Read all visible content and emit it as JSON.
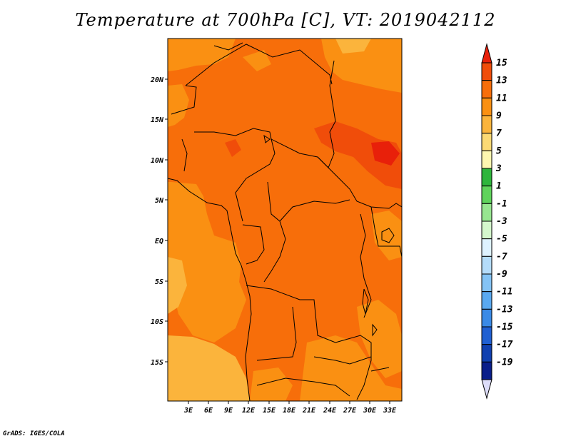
{
  "title": "Temperature at 700hPa [C], VT: 2019042112",
  "footer": "GrADS: IGES/COLA",
  "map": {
    "lat_labels": [
      "20N",
      "15N",
      "10N",
      "5N",
      "EQ",
      "5S",
      "10S",
      "15S"
    ],
    "lon_labels": [
      "3E",
      "6E",
      "9E",
      "12E",
      "15E",
      "18E",
      "21E",
      "24E",
      "27E",
      "30E",
      "33E"
    ]
  },
  "colorbar": {
    "labels": [
      "15",
      "13",
      "11",
      "9",
      "7",
      "5",
      "3",
      "1",
      "-1",
      "-3",
      "-5",
      "-7",
      "-9",
      "-11",
      "-13",
      "-15",
      "-17",
      "-19"
    ],
    "colors": [
      "#e8200a",
      "#f04d0a",
      "#f76e0a",
      "#fa9012",
      "#fbb43c",
      "#fcd974",
      "#fef7b0",
      "#2eb53c",
      "#5fd35b",
      "#97e690",
      "#d4f7cc",
      "#def2ff",
      "#b4dcfa",
      "#84c3f5",
      "#5aa9f0",
      "#3a8ae6",
      "#2060d2",
      "#1040b0",
      "#0a1e8a",
      "#dcdcf8"
    ]
  }
}
